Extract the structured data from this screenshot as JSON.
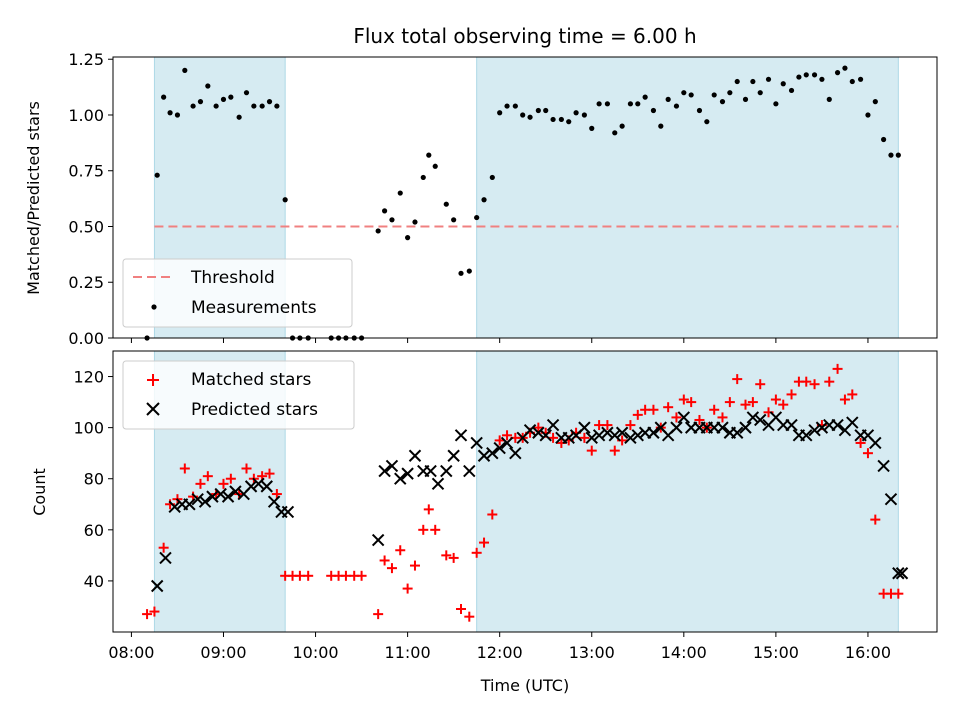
{
  "figure": {
    "title": "Flux total observing time = 6.00 h",
    "xlabel": "Time (UTC)",
    "x_ticks": [
      "08:00",
      "09:00",
      "10:00",
      "11:00",
      "12:00",
      "13:00",
      "14:00",
      "15:00",
      "16:00"
    ]
  },
  "colors": {
    "shade": "#add8e6",
    "threshold": "#f08080",
    "measurement": "#000000",
    "matched": "#ff0000",
    "predicted": "#000000"
  },
  "chart_data": [
    {
      "type": "scatter",
      "panel": "top",
      "ylabel": "Matched/Predicted stars",
      "x_unit": "hours (UTC)",
      "xlim": [
        7.8,
        16.75
      ],
      "ylim": [
        0,
        1.26
      ],
      "y_ticks": [
        "0.00",
        "0.25",
        "0.50",
        "0.75",
        "1.00",
        "1.25"
      ],
      "y_tick_values": [
        0,
        0.25,
        0.5,
        0.75,
        1.0,
        1.25
      ],
      "shaded_regions": [
        [
          8.25,
          9.67
        ],
        [
          11.75,
          16.33
        ]
      ],
      "threshold": {
        "label": "Threshold",
        "value": 0.5,
        "x_range": [
          8.25,
          16.33
        ]
      },
      "legend": {
        "entries": [
          "Threshold",
          "Measurements"
        ],
        "placement": "lower-left"
      },
      "series": [
        {
          "name": "Measurements",
          "x": [
            8.17,
            8.28,
            8.35,
            8.42,
            8.5,
            8.58,
            8.67,
            8.75,
            8.83,
            8.92,
            9.0,
            9.08,
            9.17,
            9.25,
            9.33,
            9.42,
            9.5,
            9.58,
            9.67,
            9.75,
            9.83,
            9.92,
            10.17,
            10.25,
            10.33,
            10.42,
            10.5,
            10.68,
            10.75,
            10.83,
            10.92,
            11.0,
            11.08,
            11.17,
            11.23,
            11.3,
            11.42,
            11.5,
            11.58,
            11.67,
            11.75,
            11.83,
            11.92,
            12.0,
            12.08,
            12.17,
            12.25,
            12.33,
            12.42,
            12.5,
            12.58,
            12.67,
            12.75,
            12.83,
            12.92,
            13.0,
            13.08,
            13.17,
            13.25,
            13.33,
            13.42,
            13.5,
            13.58,
            13.67,
            13.75,
            13.83,
            13.92,
            14.0,
            14.08,
            14.17,
            14.25,
            14.33,
            14.42,
            14.5,
            14.58,
            14.67,
            14.75,
            14.83,
            14.92,
            15.0,
            15.08,
            15.17,
            15.25,
            15.33,
            15.42,
            15.5,
            15.58,
            15.67,
            15.75,
            15.83,
            15.92,
            16.0,
            16.08,
            16.17,
            16.25,
            16.33
          ],
          "y": [
            0.0,
            0.73,
            1.08,
            1.01,
            1.0,
            1.2,
            1.04,
            1.06,
            1.13,
            1.04,
            1.07,
            1.08,
            0.99,
            1.1,
            1.04,
            1.04,
            1.06,
            1.04,
            0.62,
            0.0,
            0.0,
            0.0,
            0.0,
            0.0,
            0.0,
            0.0,
            0.0,
            0.48,
            0.57,
            0.53,
            0.65,
            0.45,
            0.52,
            0.72,
            0.82,
            0.77,
            0.6,
            0.53,
            0.29,
            0.3,
            0.54,
            0.62,
            0.72,
            1.01,
            1.04,
            1.04,
            1.0,
            0.99,
            1.02,
            1.02,
            0.98,
            0.98,
            0.97,
            1.01,
            1.0,
            0.94,
            1.05,
            1.05,
            0.92,
            0.95,
            1.05,
            1.05,
            1.08,
            1.02,
            0.95,
            1.07,
            1.04,
            1.1,
            1.09,
            1.02,
            0.97,
            1.09,
            1.06,
            1.1,
            1.15,
            1.07,
            1.15,
            1.1,
            1.16,
            1.05,
            1.14,
            1.11,
            1.17,
            1.18,
            1.18,
            1.16,
            1.07,
            1.19,
            1.21,
            1.15,
            1.16,
            1.0,
            1.06,
            0.89,
            0.82,
            0.82
          ]
        }
      ]
    },
    {
      "type": "scatter",
      "panel": "bottom",
      "ylabel": "Count",
      "x_unit": "hours (UTC)",
      "xlim": [
        7.8,
        16.75
      ],
      "ylim": [
        20,
        130
      ],
      "y_ticks": [
        "40",
        "60",
        "80",
        "100",
        "120"
      ],
      "y_tick_values": [
        40,
        60,
        80,
        100,
        120
      ],
      "shaded_regions": [
        [
          8.25,
          9.67
        ],
        [
          11.75,
          16.33
        ]
      ],
      "legend": {
        "entries": [
          "Matched stars",
          "Predicted stars"
        ],
        "placement": "upper-left"
      },
      "series": [
        {
          "name": "Matched stars",
          "marker": "+",
          "x": [
            8.17,
            8.25,
            8.35,
            8.42,
            8.5,
            8.58,
            8.67,
            8.75,
            8.83,
            8.92,
            9.0,
            9.08,
            9.17,
            9.25,
            9.33,
            9.42,
            9.5,
            9.58,
            9.67,
            9.75,
            9.83,
            9.92,
            10.17,
            10.25,
            10.33,
            10.42,
            10.5,
            10.68,
            10.75,
            10.83,
            10.92,
            11.0,
            11.08,
            11.17,
            11.23,
            11.3,
            11.42,
            11.5,
            11.58,
            11.67,
            11.75,
            11.83,
            11.92,
            12.0,
            12.08,
            12.17,
            12.25,
            12.33,
            12.42,
            12.5,
            12.58,
            12.67,
            12.75,
            12.83,
            12.92,
            13.0,
            13.08,
            13.17,
            13.25,
            13.33,
            13.42,
            13.5,
            13.58,
            13.67,
            13.75,
            13.83,
            13.92,
            14.0,
            14.08,
            14.17,
            14.25,
            14.33,
            14.42,
            14.5,
            14.58,
            14.67,
            14.75,
            14.83,
            14.92,
            15.0,
            15.08,
            15.17,
            15.25,
            15.33,
            15.42,
            15.5,
            15.58,
            15.67,
            15.75,
            15.83,
            15.92,
            16.0,
            16.08,
            16.17,
            16.25,
            16.33
          ],
          "y": [
            27,
            28,
            53,
            70,
            72,
            84,
            73,
            78,
            81,
            74,
            78,
            80,
            74,
            84,
            80,
            81,
            82,
            74,
            42,
            42,
            42,
            42,
            42,
            42,
            42,
            42,
            42,
            27,
            48,
            45,
            52,
            37,
            46,
            60,
            68,
            60,
            50,
            49,
            29,
            26,
            51,
            55,
            66,
            95,
            97,
            96,
            96,
            98,
            100,
            98,
            96,
            94,
            95,
            98,
            96,
            91,
            101,
            101,
            91,
            95,
            101,
            105,
            107,
            107,
            100,
            108,
            104,
            111,
            110,
            103,
            100,
            107,
            104,
            110,
            119,
            109,
            110,
            117,
            106,
            111,
            109,
            113,
            118,
            118,
            117,
            101,
            118,
            123,
            111,
            113,
            94,
            90,
            64,
            35,
            35,
            35
          ]
        },
        {
          "name": "Predicted stars",
          "marker": "x",
          "x": [
            8.28,
            8.37,
            8.47,
            8.55,
            8.63,
            8.72,
            8.8,
            8.88,
            8.97,
            9.05,
            9.13,
            9.22,
            9.3,
            9.38,
            9.47,
            9.55,
            9.63,
            9.7,
            10.68,
            10.75,
            10.83,
            10.92,
            11.0,
            11.08,
            11.17,
            11.25,
            11.33,
            11.42,
            11.5,
            11.58,
            11.67,
            11.75,
            11.83,
            11.92,
            12.0,
            12.08,
            12.17,
            12.25,
            12.33,
            12.42,
            12.5,
            12.58,
            12.67,
            12.75,
            12.83,
            12.92,
            13.0,
            13.08,
            13.17,
            13.25,
            13.33,
            13.42,
            13.5,
            13.58,
            13.67,
            13.75,
            13.83,
            13.92,
            14.0,
            14.08,
            14.17,
            14.25,
            14.33,
            14.42,
            14.5,
            14.58,
            14.67,
            14.75,
            14.83,
            14.92,
            15.0,
            15.08,
            15.17,
            15.25,
            15.33,
            15.42,
            15.5,
            15.58,
            15.67,
            15.75,
            15.83,
            15.92,
            16.0,
            16.08,
            16.17,
            16.25,
            16.33,
            16.37
          ],
          "y": [
            38,
            49,
            69,
            70,
            70,
            72,
            71,
            73,
            74,
            73,
            75,
            74,
            77,
            78,
            77,
            71,
            67,
            67,
            56,
            83,
            85,
            80,
            82,
            89,
            83,
            83,
            78,
            83,
            89,
            97,
            83,
            94,
            89,
            90,
            92,
            94,
            90,
            96,
            99,
            98,
            97,
            101,
            96,
            96,
            97,
            100,
            96,
            97,
            98,
            97,
            98,
            96,
            97,
            98,
            98,
            100,
            97,
            100,
            104,
            100,
            100,
            100,
            100,
            100,
            98,
            98,
            100,
            104,
            103,
            101,
            104,
            101,
            101,
            97,
            97,
            99,
            100,
            101,
            101,
            99,
            102,
            97,
            97,
            94,
            85,
            72,
            43,
            43
          ]
        }
      ]
    }
  ]
}
